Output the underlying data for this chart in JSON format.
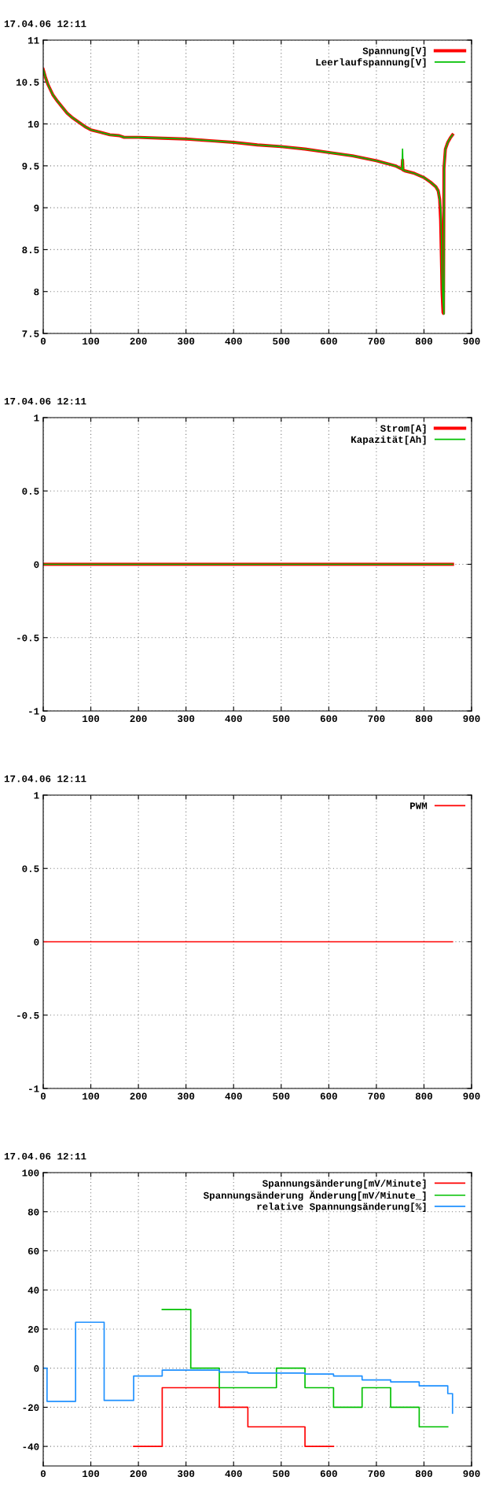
{
  "chart_data": [
    {
      "type": "line",
      "title": "17.04.06 12:11",
      "xlim": [
        0,
        900
      ],
      "xticks": [
        0,
        100,
        200,
        300,
        400,
        500,
        600,
        700,
        800,
        900
      ],
      "ylim": [
        7.5,
        11
      ],
      "yticks": [
        7.5,
        8,
        8.5,
        9,
        9.5,
        10,
        10.5,
        11
      ],
      "grid": true,
      "legend": "top right",
      "series": [
        {
          "name": "Spannung[V]",
          "color": "#ff0000",
          "x": [
            0,
            5,
            10,
            20,
            30,
            40,
            50,
            60,
            70,
            80,
            90,
            100,
            120,
            140,
            160,
            170,
            200,
            250,
            300,
            350,
            400,
            450,
            500,
            550,
            600,
            650,
            700,
            740,
            754,
            755,
            756,
            760,
            780,
            800,
            815,
            825,
            830,
            833,
            835,
            837,
            838,
            840,
            841,
            842,
            845,
            850,
            855,
            860
          ],
          "values": [
            10.65,
            10.55,
            10.47,
            10.35,
            10.27,
            10.2,
            10.13,
            10.08,
            10.04,
            10.0,
            9.96,
            9.93,
            9.9,
            9.87,
            9.86,
            9.84,
            9.84,
            9.83,
            9.82,
            9.8,
            9.78,
            9.75,
            9.73,
            9.7,
            9.66,
            9.62,
            9.56,
            9.5,
            9.46,
            9.57,
            9.45,
            9.44,
            9.41,
            9.36,
            9.3,
            9.25,
            9.2,
            9.1,
            8.85,
            8.3,
            8.0,
            7.75,
            7.74,
            9.47,
            9.7,
            9.78,
            9.83,
            9.87
          ]
        },
        {
          "name": "Leerlaufspannung[V]",
          "color": "#00c000",
          "x": [
            0,
            5,
            10,
            20,
            30,
            40,
            50,
            60,
            70,
            80,
            90,
            100,
            120,
            140,
            160,
            170,
            200,
            250,
            300,
            350,
            400,
            450,
            500,
            550,
            600,
            650,
            700,
            740,
            754,
            755,
            756,
            760,
            780,
            800,
            815,
            825,
            830,
            833,
            835,
            837,
            838,
            840,
            842,
            842.5,
            845,
            850,
            855,
            860
          ],
          "values": [
            10.65,
            10.55,
            10.47,
            10.35,
            10.27,
            10.2,
            10.13,
            10.08,
            10.04,
            10.0,
            9.96,
            9.93,
            9.9,
            9.87,
            9.86,
            9.84,
            9.84,
            9.83,
            9.82,
            9.8,
            9.78,
            9.75,
            9.73,
            9.7,
            9.66,
            9.62,
            9.56,
            9.5,
            9.46,
            9.7,
            9.45,
            9.44,
            9.41,
            9.36,
            9.3,
            9.25,
            9.2,
            9.1,
            9.0,
            8.6,
            8.2,
            7.9,
            7.73,
            9.5,
            9.7,
            9.78,
            9.83,
            9.87
          ]
        }
      ]
    },
    {
      "type": "line",
      "title": "17.04.06 12:11",
      "xlim": [
        0,
        900
      ],
      "xticks": [
        0,
        100,
        200,
        300,
        400,
        500,
        600,
        700,
        800,
        900
      ],
      "ylim": [
        -1,
        1
      ],
      "yticks": [
        -1,
        -0.5,
        0,
        0.5,
        1
      ],
      "grid": true,
      "legend": "top right",
      "series": [
        {
          "name": "Strom[A]",
          "color": "#ff0000",
          "x": [
            0,
            860
          ],
          "values": [
            0,
            0
          ]
        },
        {
          "name": "Kapazität[Ah]",
          "color": "#00c000",
          "x": [
            0,
            860
          ],
          "values": [
            0,
            0
          ]
        }
      ]
    },
    {
      "type": "line",
      "title": "17.04.06 12:11",
      "xlim": [
        0,
        900
      ],
      "xticks": [
        0,
        100,
        200,
        300,
        400,
        500,
        600,
        700,
        800,
        900
      ],
      "ylim": [
        -1,
        1
      ],
      "yticks": [
        -1,
        -0.5,
        0,
        0.5,
        1
      ],
      "grid": true,
      "legend": "top right",
      "series": [
        {
          "name": "PWM",
          "color": "#ff0000",
          "x": [
            0,
            860
          ],
          "values": [
            0,
            0
          ]
        }
      ]
    },
    {
      "type": "step",
      "title": "17.04.06 12:11",
      "xlim": [
        0,
        900
      ],
      "xticks": [
        0,
        100,
        200,
        300,
        400,
        500,
        600,
        700,
        800,
        900
      ],
      "ylim": [
        -50,
        100
      ],
      "yticks": [
        -40,
        -20,
        0,
        20,
        40,
        60,
        80,
        100
      ],
      "grid": true,
      "legend": "top right",
      "series": [
        {
          "name": "Spannungsänderung[mV/Minute]",
          "color": "#ff0000",
          "x": [
            190,
            250,
            370,
            430,
            550,
            610
          ],
          "values": [
            -40,
            -10,
            -20,
            -30,
            -40,
            -40
          ]
        },
        {
          "name": "Spannungsänderung Änderung[mV/Minute_]",
          "color": "#00c000",
          "x": [
            250,
            310,
            370,
            490,
            550,
            610,
            670,
            730,
            790,
            850
          ],
          "values": [
            30,
            0,
            -10,
            0,
            -10,
            -20,
            -10,
            -20,
            -30,
            -30
          ]
        },
        {
          "name": "relative Spannungsänderung[%]",
          "color": "#1e90ff",
          "x": [
            0,
            8,
            68,
            128,
            190,
            250,
            370,
            430,
            550,
            610,
            670,
            730,
            790,
            850,
            860
          ],
          "values": [
            0,
            -17,
            23.5,
            -16.5,
            -4,
            -1,
            -2,
            -2.5,
            -3,
            -4,
            -6,
            -7,
            -9,
            -13,
            -23
          ]
        }
      ]
    }
  ]
}
